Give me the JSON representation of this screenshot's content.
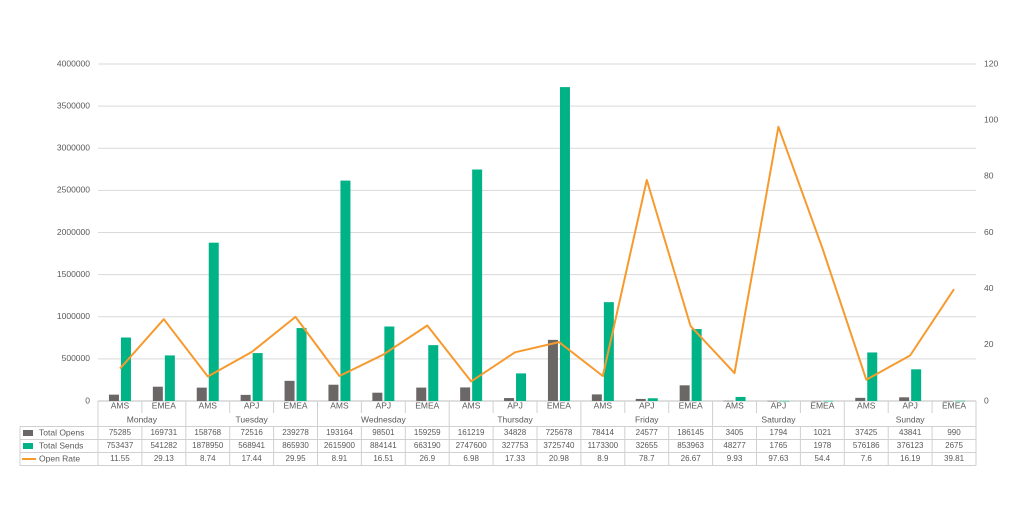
{
  "chart_data": {
    "type": "bar",
    "title": "",
    "xlabel": "",
    "ylabel": "",
    "ylim": [
      0,
      4000000
    ],
    "y2lim": [
      0,
      120
    ],
    "y_ticks": [
      "0",
      "500000",
      "1000000",
      "1500000",
      "2000000",
      "2500000",
      "3000000",
      "3500000",
      "4000000"
    ],
    "y2_ticks": [
      "0",
      "20",
      "40",
      "60",
      "80",
      "100",
      "120"
    ],
    "grid": true,
    "legend": "table",
    "days": [
      {
        "label": "Monday",
        "span": 2
      },
      {
        "label": "Tuesday",
        "span": 3
      },
      {
        "label": "Wednesday",
        "span": 3
      },
      {
        "label": "Thursday",
        "span": 3
      },
      {
        "label": "Friday",
        "span": 3
      },
      {
        "label": "Saturday",
        "span": 3
      },
      {
        "label": "Sunday",
        "span": 3
      }
    ],
    "categories": [
      "AMS",
      "EMEA",
      "AMS",
      "APJ",
      "EMEA",
      "AMS",
      "APJ",
      "EMEA",
      "AMS",
      "APJ",
      "EMEA",
      "AMS",
      "APJ",
      "EMEA",
      "AMS",
      "APJ",
      "EMEA",
      "AMS",
      "APJ",
      "EMEA"
    ],
    "series": [
      {
        "name": "Total Opens",
        "kind": "bar",
        "axis": "left",
        "color": "#6b6767",
        "values": [
          75285,
          169731,
          158768,
          72516,
          239278,
          193164,
          98501,
          159259,
          161219,
          34828,
          725678,
          78414,
          24577,
          186145,
          3405,
          1794,
          1021,
          37425,
          43841,
          990
        ]
      },
      {
        "name": "Total Sends",
        "kind": "bar",
        "axis": "left",
        "color": "#00b386",
        "values": [
          753437,
          541282,
          1878950,
          568941,
          865930,
          2615900,
          884141,
          663190,
          2747600,
          327753,
          3725740,
          1173300,
          32655,
          853963,
          48277,
          1765,
          1978,
          576186,
          376123,
          2675
        ]
      },
      {
        "name": "Open Rate",
        "kind": "line",
        "axis": "right",
        "color": "#f79a2e",
        "values": [
          11.55,
          29.13,
          8.74,
          17.44,
          29.95,
          8.91,
          16.51,
          26.9,
          6.98,
          17.33,
          20.98,
          8.9,
          78.7,
          26.67,
          9.93,
          97.63,
          54.4,
          7.6,
          16.19,
          39.81
        ]
      }
    ]
  }
}
